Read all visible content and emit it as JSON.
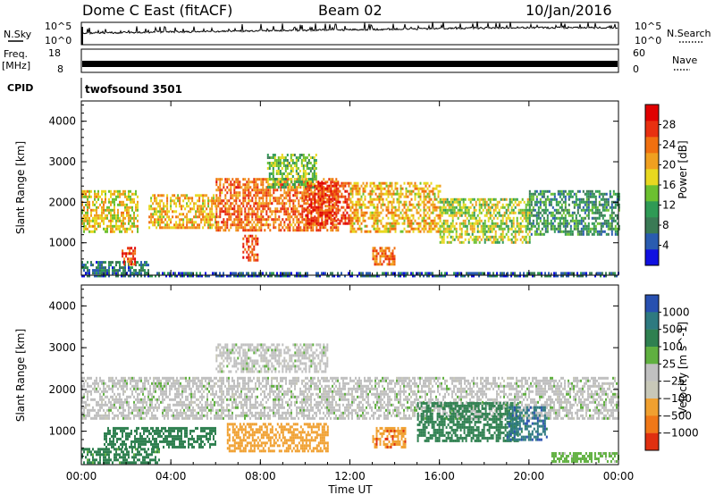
{
  "header": {
    "title": "Dome C East (fitACF)",
    "beam": "Beam 02",
    "date": "10/Jan/2016"
  },
  "nsky_panel": {
    "label": "N.Sky",
    "left_ticks": [
      "10^5",
      "10^0"
    ],
    "right_ticks": [
      "10^5",
      "10^0"
    ],
    "right_label": "N.Search"
  },
  "freq_panel": {
    "label_line1": "Freq.",
    "label_line2": "[MHz]",
    "left_ticks": [
      "18",
      "8"
    ],
    "right_ticks": [
      "60",
      "0"
    ],
    "right_label": "Nave"
  },
  "cpid_panel": {
    "label": "CPID",
    "value": "twofsound 3501"
  },
  "colors": {
    "power": [
      "#1010e0",
      "#2a5cb0",
      "#3a7a55",
      "#2f9a55",
      "#6cc030",
      "#e8d820",
      "#f0a020",
      "#f07010",
      "#e83010",
      "#e00000"
    ],
    "velocity": [
      "#2850b0",
      "#2e7a80",
      "#2f8050",
      "#60b040",
      "#c0c0c0",
      "#c8c8b8",
      "#f0a030",
      "#f07818",
      "#e03010"
    ]
  },
  "chart_data": [
    {
      "type": "heatmap",
      "title": "",
      "xlabel": "",
      "ylabel": "Slant Range [km]",
      "xlim": [
        0,
        24
      ],
      "ylim": [
        200,
        4500
      ],
      "x_ticks": [
        0,
        4,
        8,
        12,
        16,
        20,
        24
      ],
      "y_ticks": [
        1000,
        2000,
        3000,
        4000
      ],
      "colorbar": {
        "label": "Power [dB]",
        "range": [
          0,
          32
        ],
        "ticks": [
          4,
          8,
          12,
          16,
          20,
          24,
          28
        ]
      },
      "regions": [
        {
          "t0": 0.0,
          "t1": 2.5,
          "r0": 1300,
          "r1": 2300,
          "value": 18
        },
        {
          "t0": 0.0,
          "t1": 3.0,
          "r0": 250,
          "r1": 550,
          "value": 8
        },
        {
          "t0": 1.8,
          "t1": 2.4,
          "r0": 500,
          "r1": 900,
          "value": 26
        },
        {
          "t0": 3.0,
          "t1": 6.0,
          "r0": 1400,
          "r1": 2200,
          "value": 20
        },
        {
          "t0": 6.0,
          "t1": 11.5,
          "r0": 1300,
          "r1": 2600,
          "value": 24
        },
        {
          "t0": 7.2,
          "t1": 7.9,
          "r0": 600,
          "r1": 1200,
          "value": 26
        },
        {
          "t0": 8.3,
          "t1": 10.5,
          "r0": 2400,
          "r1": 3200,
          "value": 14
        },
        {
          "t0": 10.0,
          "t1": 12.0,
          "r0": 1500,
          "r1": 2500,
          "value": 28
        },
        {
          "t0": 12.0,
          "t1": 16.0,
          "r0": 1300,
          "r1": 2500,
          "value": 20
        },
        {
          "t0": 13.0,
          "t1": 14.0,
          "r0": 500,
          "r1": 900,
          "value": 24
        },
        {
          "t0": 16.0,
          "t1": 20.0,
          "r0": 1000,
          "r1": 2100,
          "value": 16
        },
        {
          "t0": 20.0,
          "t1": 24.0,
          "r0": 1200,
          "r1": 2300,
          "value": 10
        },
        {
          "t0": 0.0,
          "t1": 24.0,
          "r0": 200,
          "r1": 280,
          "value": 6
        }
      ]
    },
    {
      "type": "heatmap",
      "title": "",
      "xlabel": "Time UT",
      "ylabel": "Slant Range [km]",
      "xlim": [
        0,
        24
      ],
      "ylim": [
        200,
        4500
      ],
      "x_ticks": [
        0,
        4,
        8,
        12,
        16,
        20,
        24
      ],
      "x_tick_labels": [
        "00:00",
        "04:00",
        "08:00",
        "12:00",
        "16:00",
        "20:00",
        "00:00"
      ],
      "y_ticks": [
        1000,
        2000,
        3000,
        4000
      ],
      "colorbar": {
        "label": "Velocity [m s^-1]",
        "tick_labels": [
          "1000",
          "500",
          "100",
          "25",
          "−25",
          "−100",
          "−500",
          "−1000"
        ]
      },
      "regions": [
        {
          "t0": 0.0,
          "t1": 24.0,
          "r0": 1300,
          "r1": 2300,
          "value": 0
        },
        {
          "t0": 6.0,
          "t1": 11.0,
          "r0": 2400,
          "r1": 3100,
          "value": 0
        },
        {
          "t0": 0.0,
          "t1": 3.5,
          "r0": 250,
          "r1": 600,
          "value": 150
        },
        {
          "t0": 1.0,
          "t1": 6.0,
          "r0": 600,
          "r1": 1100,
          "value": 200
        },
        {
          "t0": 6.5,
          "t1": 11.0,
          "r0": 500,
          "r1": 1200,
          "value": -300
        },
        {
          "t0": 13.0,
          "t1": 14.5,
          "r0": 600,
          "r1": 1100,
          "value": -400
        },
        {
          "t0": 15.0,
          "t1": 19.5,
          "r0": 800,
          "r1": 1700,
          "value": 300
        },
        {
          "t0": 19.0,
          "t1": 20.8,
          "r0": 800,
          "r1": 1600,
          "value": 800
        },
        {
          "t0": 21.0,
          "t1": 24.0,
          "r0": 250,
          "r1": 500,
          "value": 50
        }
      ]
    }
  ]
}
